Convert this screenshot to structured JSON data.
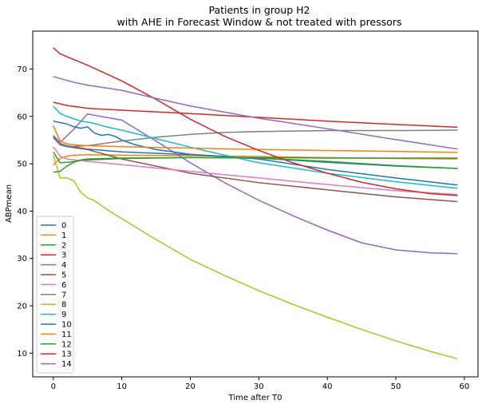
{
  "chart_data": {
    "type": "line",
    "title_line1": "Patients in group H2",
    "title_line2": "with AHE in Forecast Window & not treated with pressors",
    "xlabel": "Time after T0",
    "ylabel": "ABPmean",
    "xlim": [
      -3,
      62
    ],
    "ylim": [
      5,
      78
    ],
    "xticks": [
      0,
      10,
      20,
      30,
      40,
      50,
      60
    ],
    "yticks": [
      10,
      20,
      30,
      40,
      50,
      60,
      70
    ],
    "grid": false,
    "legend_placement": "lower-left",
    "series": [
      {
        "name": "0",
        "color": "#1f77b4",
        "x": [
          0,
          1,
          2,
          5,
          10,
          20,
          30,
          40,
          50,
          59
        ],
        "y": [
          55.8,
          54.3,
          53.8,
          53.1,
          52.5,
          51.9,
          51.2,
          50.3,
          49.5,
          49.0
        ]
      },
      {
        "name": "1",
        "color": "#ff7f0e",
        "x": [
          0,
          1,
          2,
          3,
          5,
          10,
          20,
          30,
          40,
          50,
          59
        ],
        "y": [
          49.8,
          51.1,
          51.6,
          51.8,
          51.9,
          51.8,
          51.7,
          51.5,
          51.3,
          51.1,
          51.0
        ]
      },
      {
        "name": "2",
        "color": "#2ca02c",
        "x": [
          0,
          1,
          2,
          5,
          10,
          20,
          30,
          40,
          50,
          59
        ],
        "y": [
          52.5,
          50.2,
          50.3,
          50.8,
          51.1,
          51.3,
          51.2,
          50.5,
          49.6,
          49.0
        ]
      },
      {
        "name": "3",
        "color": "#d62728",
        "x": [
          0,
          2,
          5,
          10,
          20,
          30,
          40,
          50,
          59
        ],
        "y": [
          63.0,
          62.3,
          61.7,
          61.3,
          60.6,
          59.8,
          59.0,
          58.3,
          57.7
        ]
      },
      {
        "name": "4",
        "color": "#9467bd",
        "x": [
          0,
          1,
          3,
          5,
          10,
          15,
          20,
          25,
          30,
          35,
          40,
          45,
          50,
          55,
          59
        ],
        "y": [
          56.0,
          54.5,
          57.3,
          60.5,
          59.2,
          54.8,
          50.2,
          46.0,
          42.3,
          39.0,
          36.0,
          33.3,
          31.8,
          31.2,
          31.0
        ]
      },
      {
        "name": "5",
        "color": "#8c564b",
        "x": [
          0,
          1,
          2,
          5,
          10,
          20,
          30,
          40,
          50,
          59
        ],
        "y": [
          55.5,
          54.0,
          53.6,
          53.0,
          51.0,
          48.0,
          46.0,
          44.5,
          43.0,
          42.0
        ]
      },
      {
        "name": "6",
        "color": "#e377c2",
        "x": [
          0,
          1,
          2,
          5,
          10,
          20,
          30,
          40,
          50,
          59
        ],
        "y": [
          53.6,
          51.6,
          51.0,
          50.5,
          49.8,
          48.4,
          47.0,
          45.6,
          44.3,
          43.5
        ]
      },
      {
        "name": "7",
        "color": "#7f7f7f",
        "x": [
          0,
          1,
          2,
          5,
          10,
          15,
          20,
          25,
          30,
          40,
          50,
          59
        ],
        "y": [
          55.5,
          54.2,
          53.6,
          53.8,
          54.8,
          55.6,
          56.2,
          56.6,
          56.8,
          57.0,
          57.0,
          57.1
        ]
      },
      {
        "name": "8",
        "color": "#bcbd22",
        "x": [
          0,
          1,
          2,
          3,
          4,
          5,
          6,
          8,
          10,
          15,
          20,
          25,
          30,
          35,
          40,
          45,
          50,
          55,
          59
        ],
        "y": [
          51.8,
          47.0,
          47.0,
          46.4,
          44.0,
          42.8,
          42.2,
          40.2,
          38.4,
          34.0,
          29.8,
          26.4,
          23.2,
          20.3,
          17.6,
          15.0,
          12.6,
          10.4,
          8.8
        ]
      },
      {
        "name": "9",
        "color": "#17becf",
        "x": [
          0,
          1,
          2,
          3,
          4,
          5,
          6,
          8,
          10,
          15,
          20,
          25,
          30,
          40,
          50,
          59
        ],
        "y": [
          62.2,
          60.6,
          60.0,
          59.5,
          59.0,
          58.8,
          58.5,
          57.7,
          57.1,
          55.3,
          53.5,
          51.8,
          50.2,
          48.0,
          46.2,
          44.8
        ]
      },
      {
        "name": "10",
        "color": "#1f77b4",
        "x": [
          0,
          1,
          2,
          3,
          4,
          5,
          6,
          7,
          8,
          9,
          10,
          12,
          15,
          20,
          30,
          40,
          50,
          59
        ],
        "y": [
          59.0,
          58.7,
          58.4,
          57.8,
          57.5,
          57.8,
          56.5,
          56.0,
          56.2,
          55.8,
          55.0,
          54.0,
          53.0,
          52.0,
          51.0,
          48.8,
          47.0,
          45.5
        ]
      },
      {
        "name": "11",
        "color": "#ff7f0e",
        "x": [
          0,
          1,
          2,
          3,
          5,
          10,
          20,
          30,
          40,
          50,
          59
        ],
        "y": [
          58.0,
          54.8,
          54.2,
          54.0,
          53.8,
          53.6,
          53.3,
          53.0,
          52.8,
          52.6,
          52.4
        ]
      },
      {
        "name": "12",
        "color": "#2ca02c",
        "x": [
          0,
          1,
          2,
          3,
          4,
          5,
          10,
          20,
          30,
          40,
          50,
          59
        ],
        "y": [
          48.2,
          48.4,
          49.5,
          50.3,
          50.8,
          51.0,
          51.2,
          51.3,
          51.3,
          51.2,
          51.2,
          51.2
        ]
      },
      {
        "name": "13",
        "color": "#d62728",
        "x": [
          0,
          1,
          2,
          5,
          10,
          15,
          20,
          25,
          30,
          35,
          40,
          45,
          50,
          55,
          59
        ],
        "y": [
          74.5,
          73.2,
          72.6,
          70.8,
          67.5,
          63.6,
          59.4,
          55.8,
          52.8,
          50.2,
          48.0,
          46.1,
          44.7,
          43.7,
          43.3
        ]
      },
      {
        "name": "14",
        "color": "#9467bd",
        "x": [
          0,
          1,
          2,
          3,
          5,
          10,
          15,
          20,
          30,
          40,
          50,
          59
        ],
        "y": [
          68.4,
          68.0,
          67.6,
          67.2,
          66.6,
          65.5,
          63.8,
          62.2,
          59.6,
          57.4,
          55.1,
          53.1
        ]
      }
    ]
  }
}
